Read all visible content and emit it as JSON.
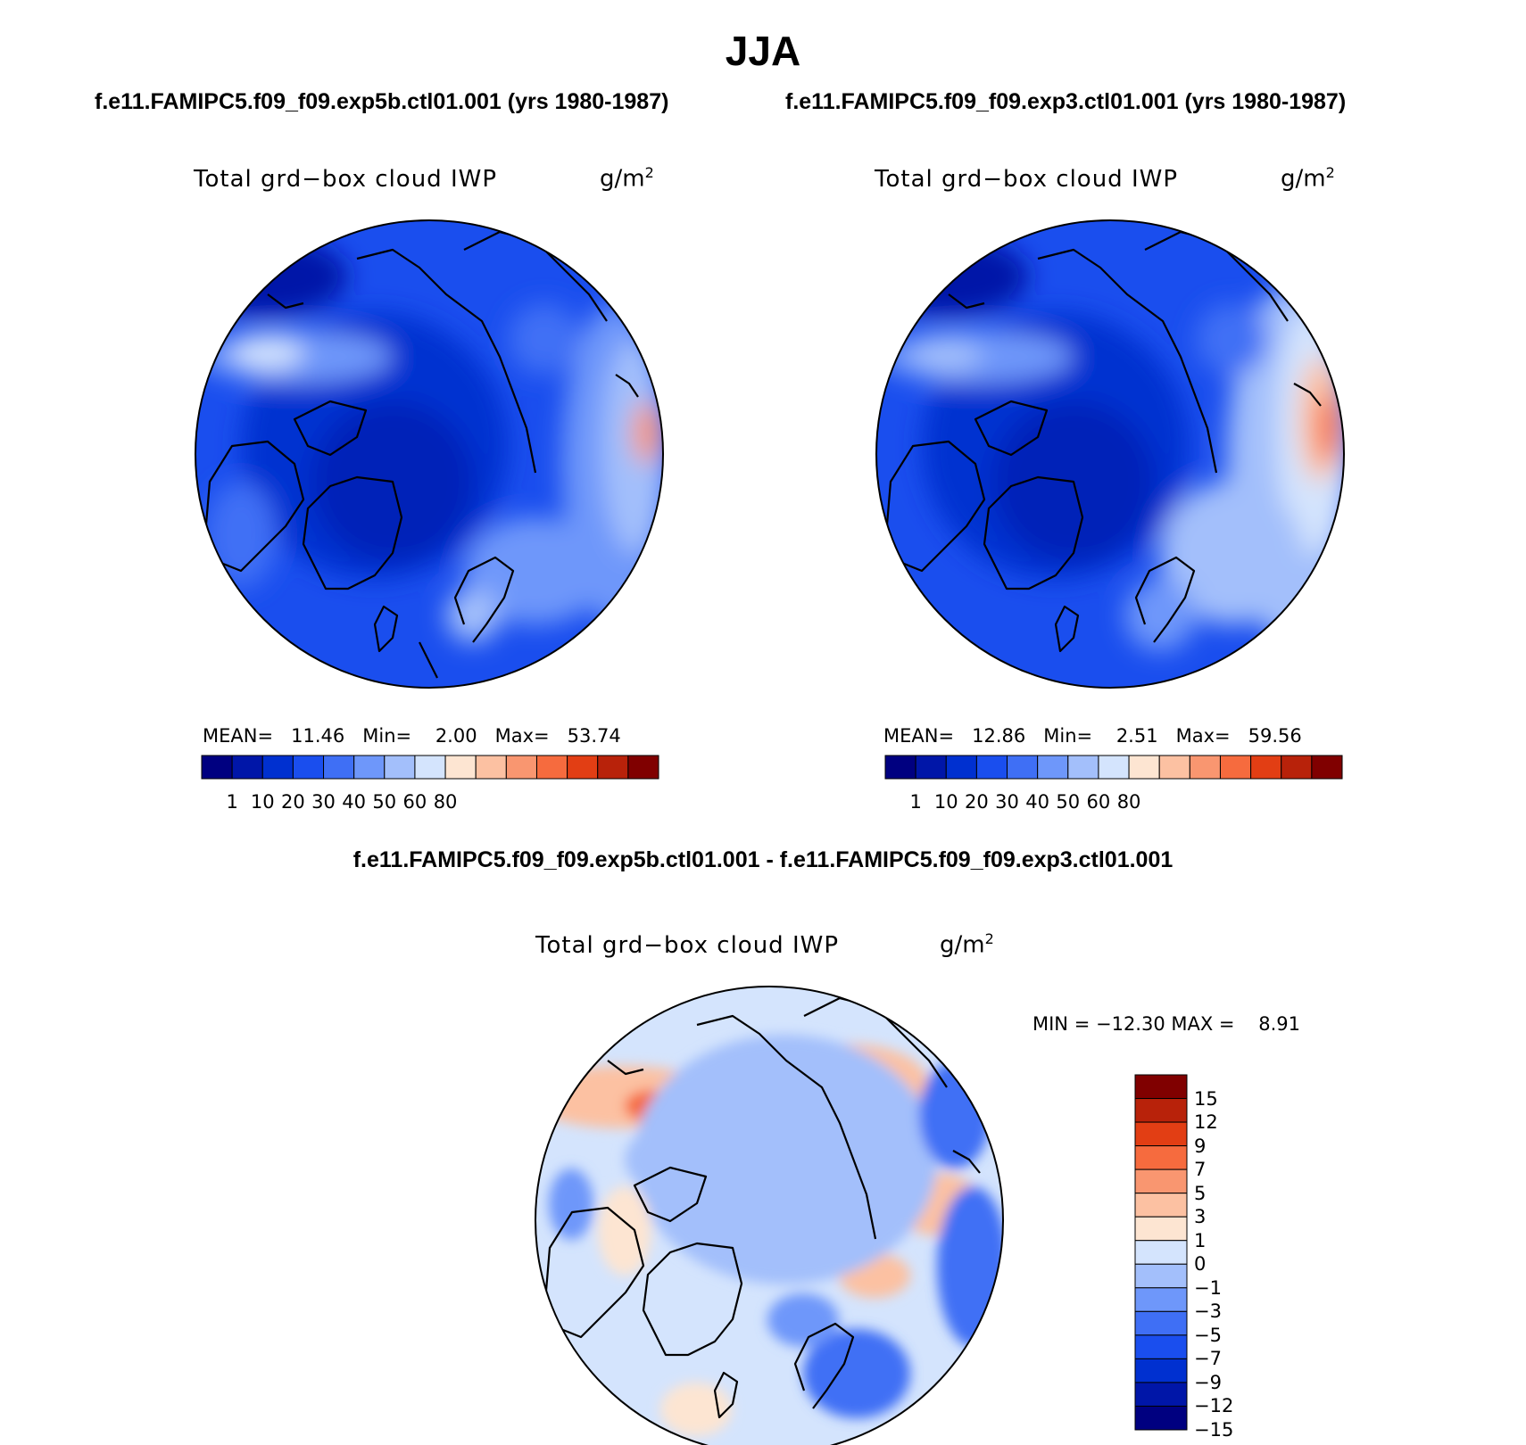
{
  "title": "JJA",
  "case1_title": "f.e11.FAMIPC5.f09_f09.exp5b.ctl01.001 (yrs 1980-1987)",
  "case2_title": "f.e11.FAMIPC5.f09_f09.exp3.ctl01.001 (yrs 1980-1987)",
  "diff_title": "f.e11.FAMIPC5.f09_f09.exp5b.ctl01.001 - f.e11.FAMIPC5.f09_f09.exp3.ctl01.001",
  "panels": [
    {
      "variable": "Total grd−box cloud IWP",
      "units": "g/m",
      "units_exp": "2",
      "stats": {
        "mean_label": "MEAN=",
        "mean": "11.46",
        "min_label": "Min=",
        "min": "2.00",
        "max_label": "Max=",
        "max": "53.74"
      }
    },
    {
      "variable": "Total grd−box cloud IWP",
      "units": "g/m",
      "units_exp": "2",
      "stats": {
        "mean_label": "MEAN=",
        "mean": "12.86",
        "min_label": "Min=",
        "min": "2.51",
        "max_label": "Max=",
        "max": "59.56"
      }
    },
    {
      "variable": "Total grd−box cloud IWP",
      "units": "g/m",
      "units_exp": "2",
      "stats": {
        "min_label": "MIN =",
        "min": "−12.30",
        "max_label": "MAX =",
        "max": "8.91"
      }
    }
  ],
  "abs_colorbar": {
    "colors": [
      "#000080",
      "#0016A8",
      "#0030D0",
      "#1A4EEE",
      "#3F6FF5",
      "#6E97FA",
      "#A3BFFB",
      "#D4E4FD",
      "#FDE5D2",
      "#FCC1A2",
      "#F99670",
      "#F66B3E",
      "#E23E14",
      "#B8220A",
      "#800000"
    ],
    "tick_labels": [
      "1",
      "10",
      "20",
      "30",
      "40",
      "50",
      "60",
      "80"
    ]
  },
  "diff_colorbar": {
    "colors": [
      "#000080",
      "#0016A8",
      "#0030D0",
      "#1A4EEE",
      "#3F6FF5",
      "#6E97FA",
      "#A3BFFB",
      "#D4E4FD",
      "#FDE5D2",
      "#FCC1A2",
      "#F99670",
      "#F66B3E",
      "#E23E14",
      "#B8220A",
      "#800000"
    ],
    "tick_labels": [
      "15",
      "12",
      "9",
      "7",
      "5",
      "3",
      "1",
      "0",
      "−1",
      "−3",
      "−5",
      "−7",
      "−9",
      "−12",
      "−15"
    ]
  }
}
